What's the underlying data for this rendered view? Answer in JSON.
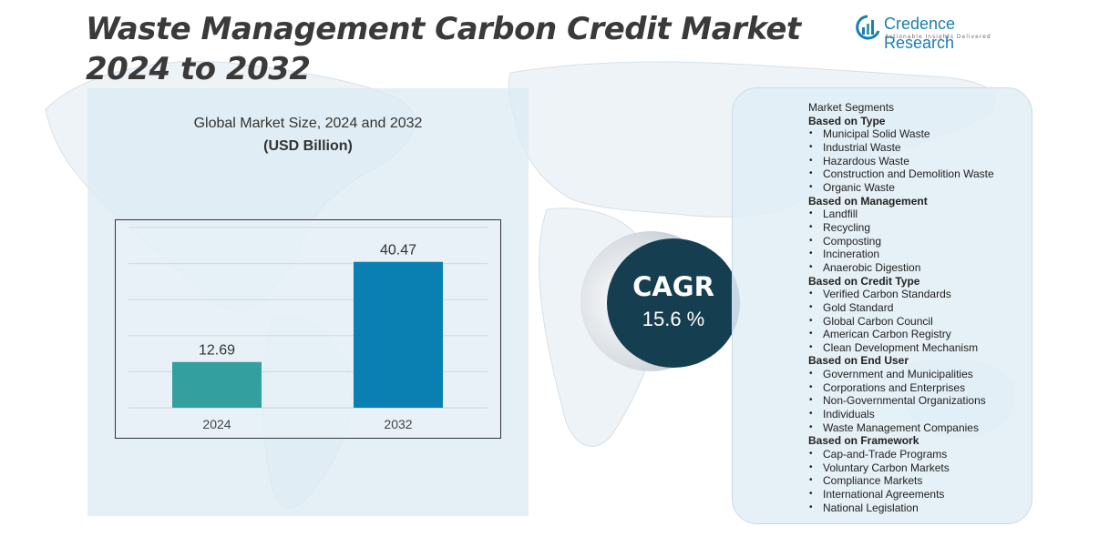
{
  "title_line1": "Waste Management Carbon Credit Market",
  "title_line2": "2024 to 2032",
  "logo": {
    "name": "Credence Research",
    "tagline": "Actionable Insights Delivered",
    "icon": "credence-bars-logo-icon"
  },
  "colors": {
    "bar_2024": "#33a09f",
    "bar_2032": "#0a7fb1",
    "cagr_bg": "#153e51",
    "panel_bg": "#dceaf4"
  },
  "chart_data": {
    "type": "bar",
    "title": "Global Market Size, 2024 and 2032",
    "subtitle": "(USD Billion)",
    "categories": [
      "2024",
      "2032"
    ],
    "values": [
      12.69,
      40.47
    ],
    "value_labels": [
      "12.69",
      "40.47"
    ],
    "ylim": [
      0,
      50
    ],
    "grid": true
  },
  "cagr": {
    "label": "CAGR",
    "value": "15.6 %"
  },
  "segments": {
    "title": "Market Segments",
    "groups": [
      {
        "title": "Based on Type",
        "items": [
          "Municipal Solid Waste",
          "Industrial Waste",
          "Hazardous Waste",
          "Construction and Demolition Waste",
          "Organic Waste"
        ]
      },
      {
        "title": "Based on Management",
        "items": [
          "Landfill",
          "Recycling",
          "Composting",
          "Incineration",
          "Anaerobic Digestion"
        ]
      },
      {
        "title": "Based on Credit Type",
        "items": [
          "Verified Carbon Standards",
          "Gold Standard",
          "Global Carbon Council",
          "American Carbon Registry",
          "Clean Development Mechanism"
        ]
      },
      {
        "title": " Based on End User",
        "items": [
          "Government and Municipalities",
          "Corporations and Enterprises",
          "Non-Governmental Organizations",
          "Individuals",
          "Waste Management Companies"
        ]
      },
      {
        "title": "Based on Framework",
        "items": [
          "Cap-and-Trade Programs",
          "Voluntary Carbon Markets",
          "Compliance Markets",
          "International Agreements",
          "National Legislation"
        ]
      }
    ]
  }
}
